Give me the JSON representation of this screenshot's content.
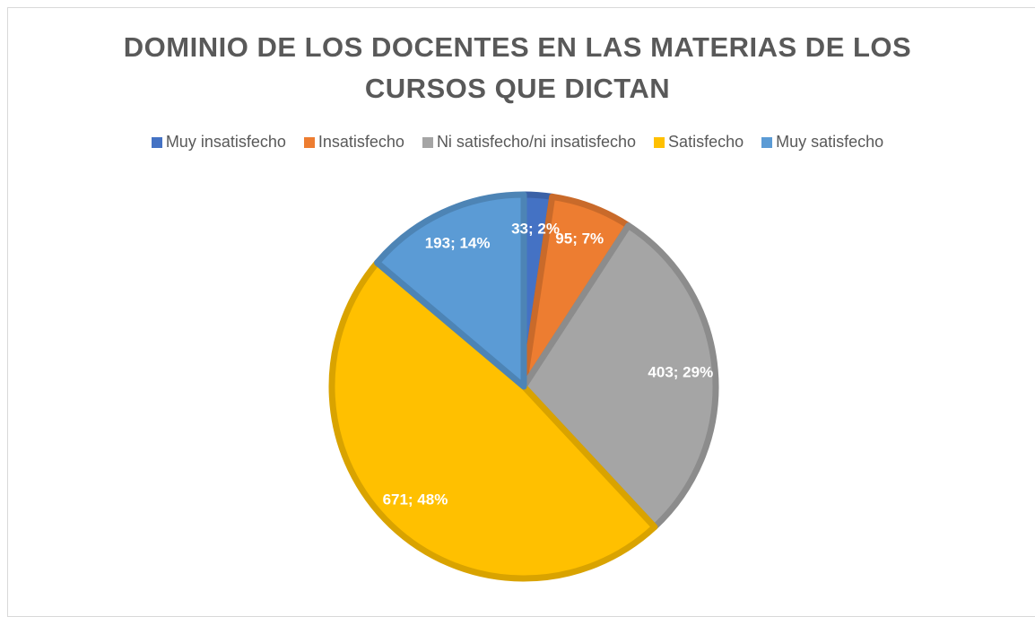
{
  "chart_data": {
    "type": "pie",
    "title": "DOMINIO DE LOS DOCENTES EN LAS MATERIAS DE LOS CURSOS QUE DICTAN",
    "categories": [
      "Muy insatisfecho",
      "Insatisfecho",
      "Ni satisfecho/ni insatisfecho",
      "Satisfecho",
      "Muy satisfecho"
    ],
    "values": [
      33,
      95,
      403,
      671,
      193
    ],
    "value_labels": [
      "33; 2%",
      "95; 7%",
      "403; 29%",
      "671; 48%",
      "193; 14%"
    ],
    "colors": [
      "#4472c4",
      "#ed7d31",
      "#a5a5a5",
      "#ffc000",
      "#5b9bd5"
    ],
    "legend": "top"
  }
}
